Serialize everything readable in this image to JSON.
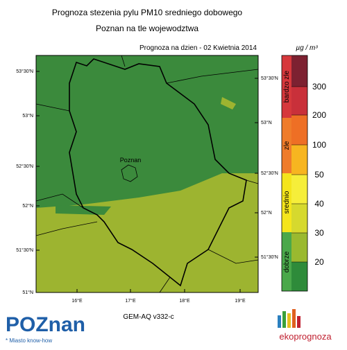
{
  "header": {
    "title": "Prognoza stezenia pylu PM10 sredniego dobowego",
    "subtitle": "Poznan na tle wojewodztwa",
    "date": "Prognoza na dzien -  02 Kwietnia 2014"
  },
  "map": {
    "lat_left": [
      "53°30'N",
      "53°N",
      "52°30'N",
      "52°N",
      "51°30'N",
      "51°N"
    ],
    "lat_right": [
      "53°30'N",
      "53°N",
      "52°30'N",
      "52°N",
      "51°30'N"
    ],
    "lon_bottom": [
      "16°E",
      "17°E",
      "18°E",
      "19°E"
    ],
    "city": "Poznan"
  },
  "legend": {
    "unit": "µg / m³",
    "categories": [
      "bardzo zle",
      "zle",
      "srednio",
      "dobrze"
    ],
    "levels": [
      "300",
      "200",
      "100",
      "50",
      "40",
      "30",
      "20"
    ]
  },
  "footer": {
    "left_logo": "POZnan",
    "left_tagline": "* Miasto know-how",
    "model": "GEM-AQ v332-c",
    "right_logo": "ekoprognoza"
  }
}
